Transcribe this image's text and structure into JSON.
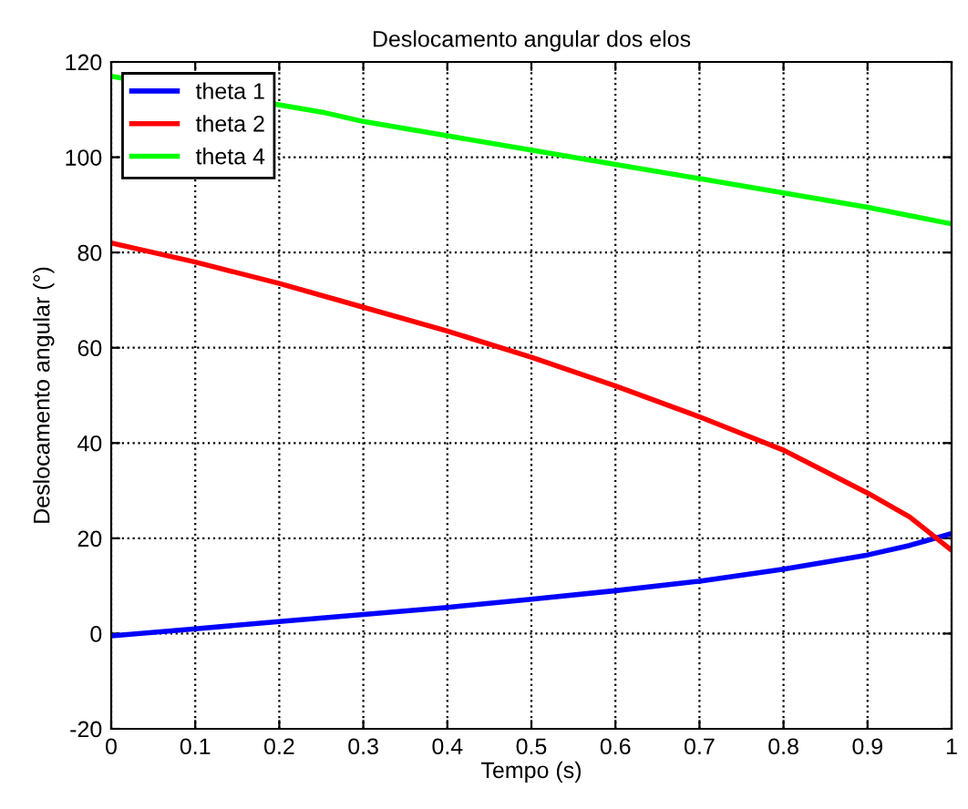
{
  "chart_data": {
    "type": "line",
    "title": "Deslocamento angular dos elos",
    "xlabel": "Tempo (s)",
    "ylabel": "Deslocamento angular (°)",
    "x": [
      0,
      0.1,
      0.2,
      0.3,
      0.4,
      0.5,
      0.6,
      0.7,
      0.8,
      0.9,
      0.95,
      1.0
    ],
    "series": [
      {
        "name": "theta 1",
        "color": "#0000ff",
        "values": [
          -0.5,
          1,
          2.5,
          4,
          5.5,
          7.2,
          9,
          11,
          13.5,
          16.5,
          18.5,
          21
        ]
      },
      {
        "name": "theta 2",
        "color": "#ff0000",
        "values": [
          82,
          78,
          73.5,
          68.5,
          63.5,
          58,
          52,
          45.5,
          38.5,
          29.5,
          24.5,
          17.5
        ]
      },
      {
        "name": "theta 4",
        "color": "#00ff00",
        "x": [
          0,
          0.25,
          0.3,
          0.4,
          0.5,
          0.6,
          0.7,
          0.8,
          0.9,
          1.0
        ],
        "values": [
          117,
          109.5,
          107.5,
          104.5,
          101.5,
          98.5,
          95.5,
          92.5,
          89.5,
          86
        ]
      }
    ],
    "xlim": [
      0,
      1
    ],
    "xticks": [
      0,
      0.1,
      0.2,
      0.3,
      0.4,
      0.5,
      0.6,
      0.7,
      0.8,
      0.9,
      1
    ],
    "ylim": [
      -20,
      120
    ],
    "yticks": [
      -20,
      0,
      20,
      40,
      60,
      80,
      100,
      120
    ],
    "grid": true,
    "legend": "top left",
    "line_style": "solid",
    "marker": "none"
  }
}
